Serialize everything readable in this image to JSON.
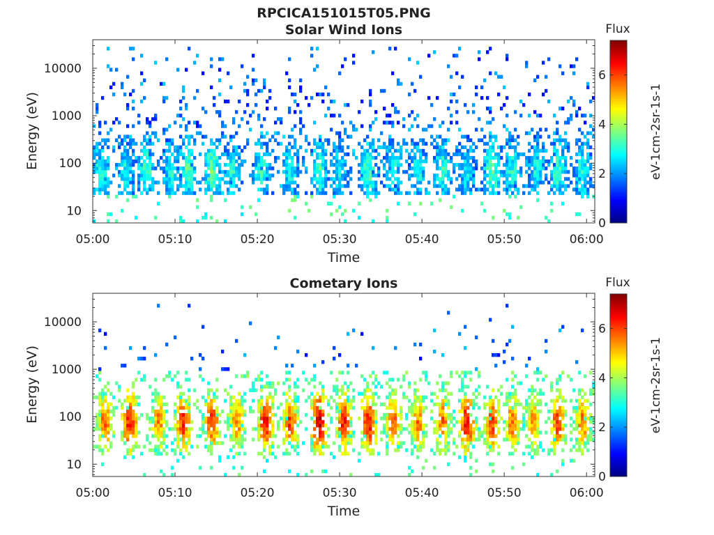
{
  "figure_title": "RPCICA151015T05.PNG",
  "chart_data": [
    {
      "type": "heatmap",
      "title": "Solar Wind Ions",
      "xlabel": "Time",
      "ylabel": "Energy (eV)",
      "x_ticks": [
        "05:00",
        "05:10",
        "05:20",
        "05:30",
        "05:40",
        "05:50",
        "06:00"
      ],
      "x_range_minutes": [
        0,
        61
      ],
      "y_scale": "log",
      "y_ticks": [
        {
          "value": 10,
          "label": "10"
        },
        {
          "value": 100,
          "label": "100"
        },
        {
          "value": 1000,
          "label": "1000"
        },
        {
          "value": 10000,
          "label": "10000"
        }
      ],
      "y_range_eV": [
        5.5,
        40000
      ],
      "colorbar": {
        "title": "Flux",
        "label": "eV-1cm-2sr-1s-1",
        "range": [
          0,
          7.4
        ],
        "ticks": [
          0,
          2,
          4,
          6
        ],
        "colormap": "jet"
      },
      "features": {
        "core_band_eV": [
          20,
          600
        ],
        "background_sparse_eV": [
          600,
          30000
        ],
        "dominant_flux": [
          2,
          3.5
        ],
        "burst_times_minutes": [
          1,
          4,
          6.5,
          9.5,
          11.5,
          14.5,
          17,
          20.5,
          24,
          27.5,
          30,
          33.5,
          36.5,
          39.5,
          42.5,
          45.5,
          48.5,
          51,
          54,
          56.5,
          59.5
        ],
        "burst_peak_flux": [
          3.1,
          2.8,
          3.2,
          2.9,
          3.3,
          3.5,
          3.0,
          3.1,
          2.9,
          3.2,
          2.8,
          3.3,
          3.0,
          2.9,
          3.1,
          2.7,
          3.4,
          3.0,
          2.9,
          3.2,
          3.0
        ]
      }
    },
    {
      "type": "heatmap",
      "title": "Cometary Ions",
      "xlabel": "Time",
      "ylabel": "Energy (eV)",
      "x_ticks": [
        "05:00",
        "05:10",
        "05:20",
        "05:30",
        "05:40",
        "05:50",
        "06:00"
      ],
      "x_range_minutes": [
        0,
        61
      ],
      "y_scale": "log",
      "y_ticks": [
        {
          "value": 10,
          "label": "10"
        },
        {
          "value": 100,
          "label": "100"
        },
        {
          "value": 1000,
          "label": "1000"
        },
        {
          "value": 10000,
          "label": "10000"
        }
      ],
      "y_range_eV": [
        5.5,
        40000
      ],
      "colorbar": {
        "title": "Flux",
        "label": "eV-1cm-2sr-1s-1",
        "range": [
          0,
          7.4
        ],
        "ticks": [
          0,
          2,
          4,
          6
        ],
        "colormap": "jet"
      },
      "features": {
        "core_band_eV": [
          15,
          1000
        ],
        "background_sparse_eV": [
          1000,
          25000
        ],
        "dominant_flux": [
          4,
          6
        ],
        "burst_times_minutes": [
          1.5,
          4.5,
          8,
          11,
          14.5,
          17.5,
          21,
          24,
          27.5,
          30.5,
          33.5,
          36.5,
          39.5,
          42.5,
          45.5,
          48.5,
          51,
          53.5,
          56.5,
          59.5
        ],
        "burst_peak_flux": [
          5.8,
          6.4,
          5.5,
          6.3,
          6.1,
          5.6,
          6.5,
          6.0,
          6.8,
          6.4,
          6.5,
          5.9,
          5.6,
          5.8,
          6.5,
          6.1,
          5.7,
          5.4,
          6.0,
          5.6
        ]
      }
    }
  ]
}
